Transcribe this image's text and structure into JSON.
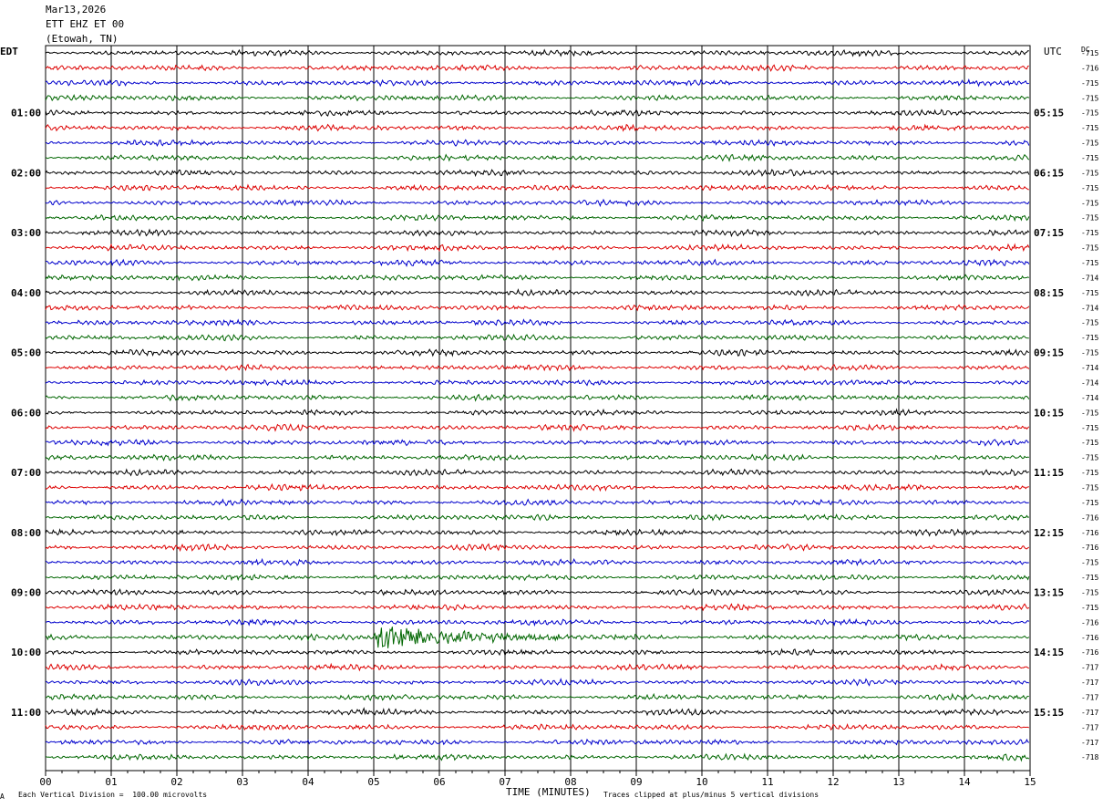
{
  "header": {
    "date": "Mar13,2026",
    "channel": "ETT EHZ ET 00",
    "location": "(Etowah, TN)"
  },
  "left_tz": "EDT",
  "right_tz": "UTC",
  "dc_label": "DC",
  "footer": {
    "scale": "Each Vertical Division =  100.00 microvolts",
    "xlabel": "TIME (MINUTES)",
    "clip": "Traces clipped at plus/minus 5 vertical divisions",
    "mark": "A"
  },
  "colors": {
    "trace_cycle": [
      "#000000",
      "#dd0000",
      "#0000cc",
      "#006600"
    ],
    "grid": "#000000"
  },
  "chart_data": {
    "type": "line",
    "title": "Mar13,2026 ETT EHZ ET 00 (Etowah, TN)",
    "xlabel": "TIME (MINUTES)",
    "xlim": [
      0,
      15
    ],
    "x_ticks": [
      "00",
      "01",
      "02",
      "03",
      "04",
      "05",
      "06",
      "07",
      "08",
      "09",
      "10",
      "11",
      "12",
      "13",
      "14",
      "15"
    ],
    "left_hour_labels": [
      "01:00",
      "02:00",
      "03:00",
      "04:00",
      "05:00",
      "06:00",
      "07:00",
      "08:00",
      "09:00",
      "10:00",
      "11:00"
    ],
    "right_hour_labels": [
      "05:15",
      "06:15",
      "07:15",
      "08:15",
      "09:15",
      "10:15",
      "11:15",
      "12:15",
      "13:15",
      "14:15",
      "15:15"
    ],
    "trace_count": 48,
    "traces_per_hour": 4,
    "dc_offsets": [
      "-715",
      "-716",
      "-715",
      "-715",
      "-715",
      "-715",
      "-715",
      "-715",
      "-715",
      "-715",
      "-715",
      "-715",
      "-715",
      "-715",
      "-715",
      "-714",
      "-715",
      "-714",
      "-715",
      "-715",
      "-715",
      "-714",
      "-714",
      "-714",
      "-715",
      "-715",
      "-715",
      "-715",
      "-715",
      "-715",
      "-715",
      "-716",
      "-716",
      "-716",
      "-715",
      "-715",
      "-715",
      "-715",
      "-716",
      "-716",
      "-716",
      "-717",
      "-717",
      "-717",
      "-717",
      "-717",
      "-717",
      "-718"
    ],
    "events": [
      {
        "trace": 39,
        "start_min": 5.0,
        "peak_min": 5.05,
        "duration_min": 3.0,
        "amplitude_div": 5
      },
      {
        "trace": 44,
        "start_min": 4.7,
        "peak_min": 5.0,
        "duration_min": 0.6,
        "amplitude_div": 1.5
      }
    ],
    "amplitude_unit": "vertical divisions",
    "clip_div": 5
  }
}
